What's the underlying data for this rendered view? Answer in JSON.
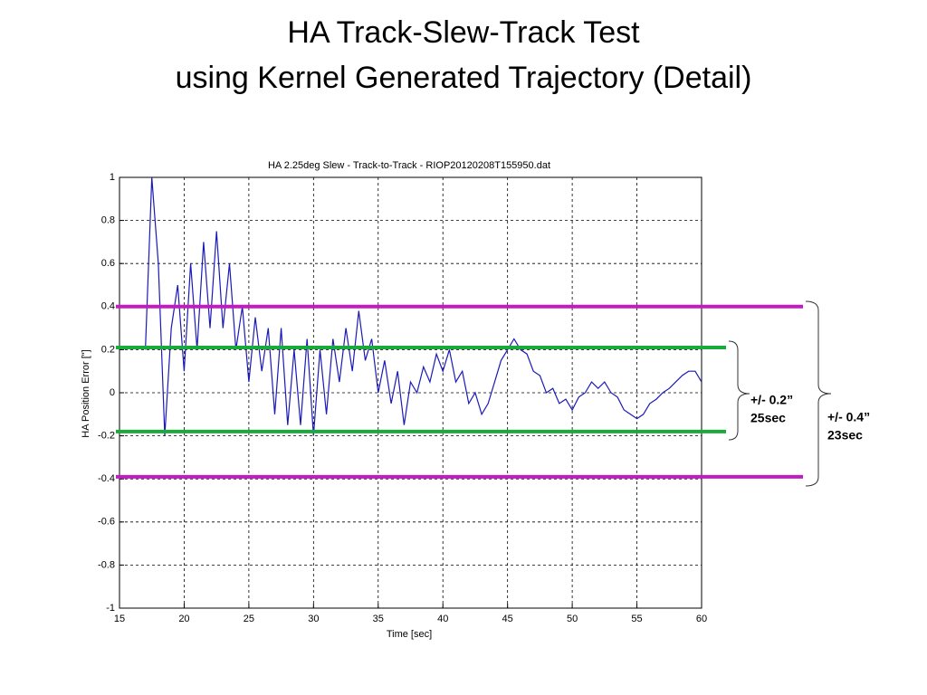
{
  "slide_title": [
    "HA Track-Slew-Track Test",
    "using Kernel Generated Trajectory (Detail)"
  ],
  "chart_data": {
    "type": "line",
    "title": "HA 2.25deg Slew - Track-to-Track  - RIOP20120208T155950.dat",
    "x_label": "Time [sec]",
    "y_label": "HA Position Error [\"]",
    "x": [
      17,
      17.5,
      18,
      18.5,
      19,
      19.5,
      20,
      20.5,
      21,
      21.5,
      22,
      22.5,
      23,
      23.5,
      24,
      24.5,
      25,
      25.5,
      26,
      26.5,
      27,
      27.5,
      28,
      28.5,
      29,
      29.5,
      30,
      30.5,
      31,
      31.5,
      32,
      32.5,
      33,
      33.5,
      34,
      34.5,
      35,
      35.5,
      36,
      36.5,
      37,
      37.5,
      38,
      38.5,
      39,
      39.5,
      40,
      40.5,
      41,
      41.5,
      42,
      42.5,
      43,
      43.5,
      44,
      44.5,
      45,
      45.5,
      46,
      46.5,
      47,
      47.5,
      48,
      48.5,
      49,
      49.5,
      50,
      50.5,
      51,
      51.5,
      52,
      52.5,
      53,
      53.5,
      54,
      54.5,
      55,
      55.5,
      56,
      56.5,
      57,
      57.5,
      58,
      58.5,
      59,
      59.5,
      60
    ],
    "series": [
      {
        "color": "#1a1ab8",
        "values": [
          0.2,
          1,
          0.6,
          -0.2,
          0.3,
          0.5,
          0.1,
          0.6,
          0.2,
          0.7,
          0.3,
          0.75,
          0.3,
          0.6,
          0.2,
          0.4,
          0.05,
          0.35,
          0.1,
          0.3,
          -0.1,
          0.3,
          -0.15,
          0.2,
          -0.15,
          0.25,
          -0.2,
          0.2,
          -0.1,
          0.25,
          0.05,
          0.3,
          0.1,
          0.38,
          0.15,
          0.25,
          0,
          0.15,
          -0.05,
          0.1,
          -0.15,
          0.05,
          0,
          0.12,
          0.05,
          0.18,
          0.1,
          0.2,
          0.05,
          0.1,
          -0.05,
          0,
          -0.1,
          -0.05,
          0.05,
          0.15,
          0.2,
          0.25,
          0.2,
          0.18,
          0.1,
          0.08,
          0,
          0.02,
          -0.05,
          -0.03,
          -0.08,
          -0.02,
          0,
          0.05,
          0.02,
          0.05,
          0,
          -0.02,
          -0.08,
          -0.1,
          -0.12,
          -0.1,
          -0.05,
          -0.03,
          0,
          0.02,
          0.05,
          0.08,
          0.1,
          0.1,
          0.05
        ]
      }
    ],
    "xlim": [
      15,
      60
    ],
    "xticks": [
      15,
      20,
      25,
      30,
      35,
      40,
      45,
      50,
      55,
      60
    ],
    "ylim": [
      -1,
      1
    ],
    "yticks": [
      -1,
      -0.8,
      -0.6,
      -0.4,
      -0.2,
      0,
      0.2,
      0.4,
      0.6,
      0.8,
      1
    ],
    "grid": true,
    "reference_lines": [
      {
        "value": 0.4,
        "color": "#c21bc2"
      },
      {
        "value": -0.39,
        "color": "#c21bc2"
      },
      {
        "value": 0.21,
        "color": "#1aaa3a"
      },
      {
        "value": -0.18,
        "color": "#1aaa3a"
      }
    ],
    "annotations": [
      {
        "lines": [
          "+/- 0.2”",
          "25sec"
        ]
      },
      {
        "lines": [
          "+/- 0.4”",
          "23sec"
        ]
      }
    ]
  }
}
